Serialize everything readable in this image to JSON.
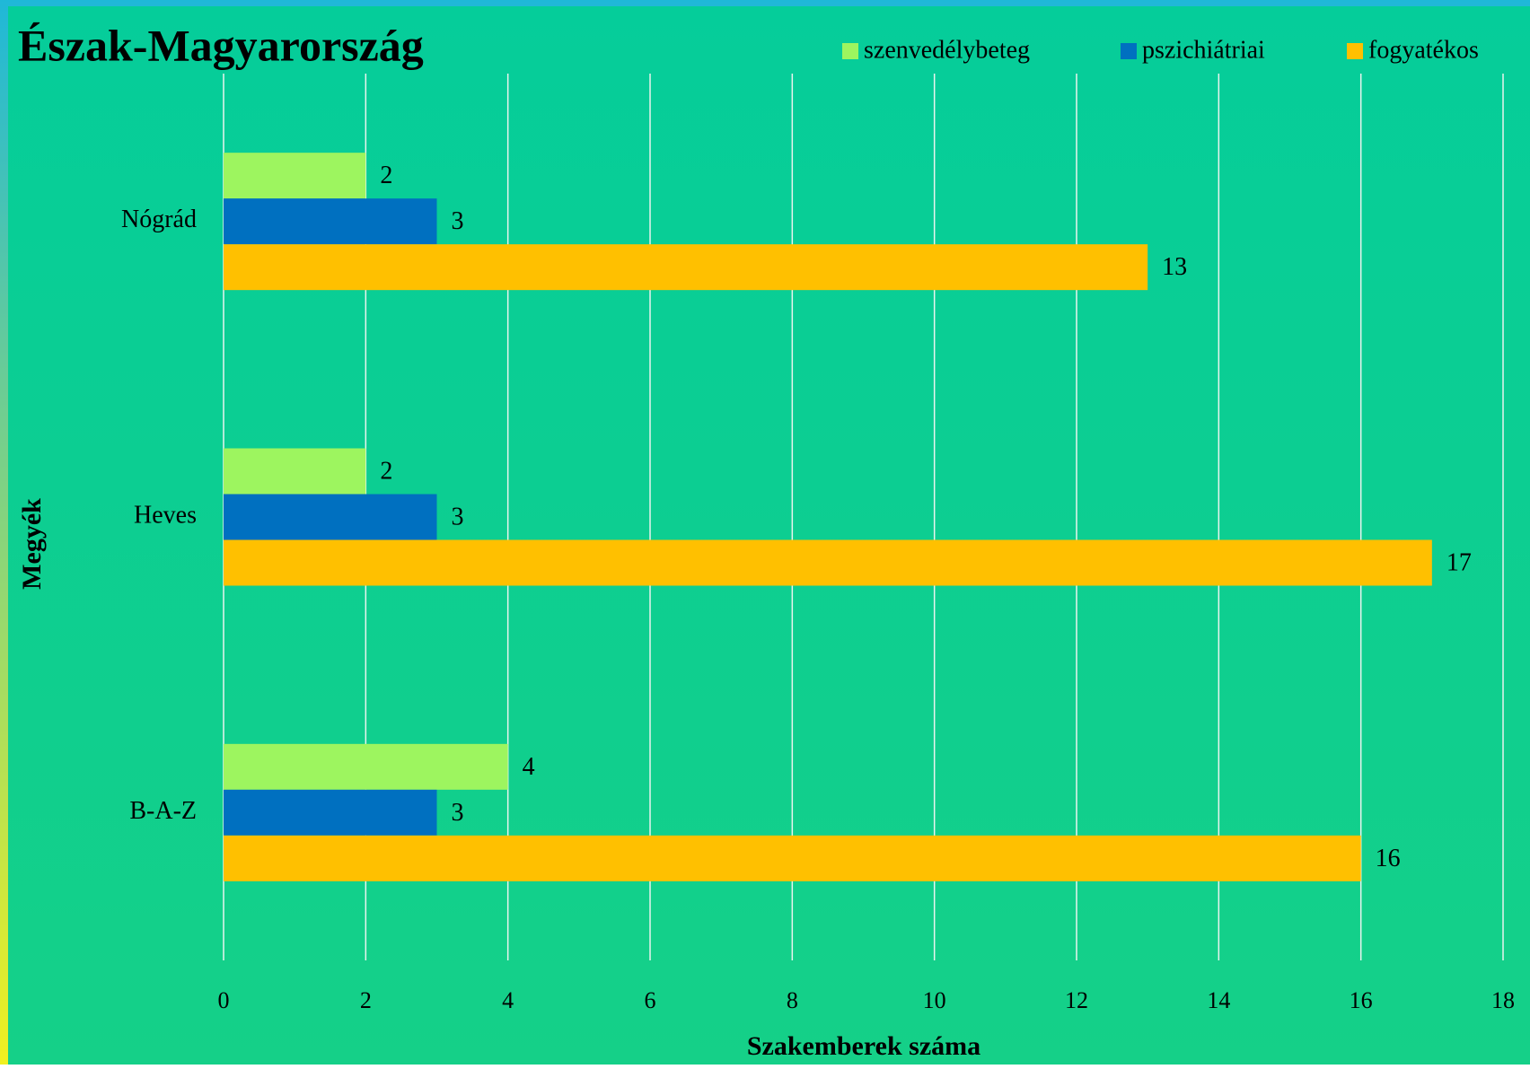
{
  "chart_data": {
    "type": "hbar",
    "title": "Észak-Magyarország",
    "x_label": "Szakemberek száma",
    "y_label": "Megyék",
    "categories": [
      "Nógrád",
      "Heves",
      "B-A-Z"
    ],
    "series": [
      {
        "name": "szenvedélybeteg",
        "color": "#9df55f",
        "values": [
          2,
          2,
          4
        ]
      },
      {
        "name": "pszichiátriai",
        "color": "#0070c0",
        "values": [
          3,
          3,
          3
        ]
      },
      {
        "name": "fogyatékos",
        "color": "#ffc000",
        "values": [
          13,
          17,
          16
        ]
      }
    ],
    "xlim": [
      0,
      18
    ],
    "xticks": [
      0,
      2,
      4,
      6,
      8,
      10,
      12,
      14,
      16,
      18
    ],
    "grid": true,
    "legend": "top-right"
  }
}
